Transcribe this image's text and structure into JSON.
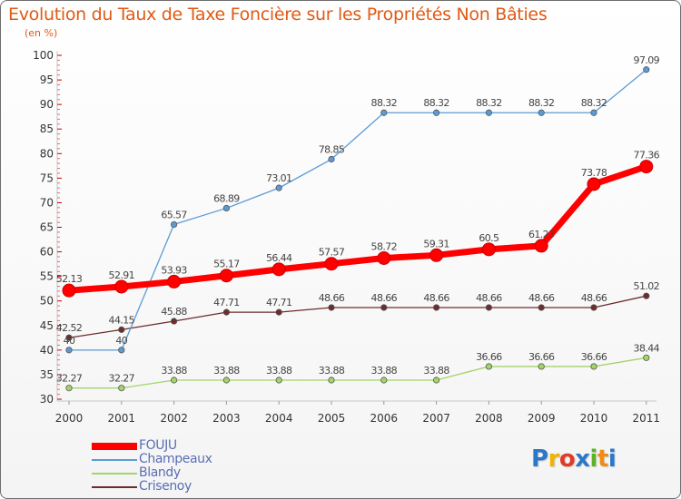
{
  "title": "Evolution du Taux de Taxe Foncière sur les Propriétés Non Bâties",
  "subtitle": "(en %)",
  "chart_data": {
    "type": "line",
    "title": "Evolution du Taux de Taxe Foncière sur les Propriétés Non Bâties",
    "ylabel": "(en %)",
    "xlabel": "",
    "x": [
      "2000",
      "2001",
      "2002",
      "2003",
      "2004",
      "2005",
      "2006",
      "2007",
      "2008",
      "2009",
      "2010",
      "2011"
    ],
    "ylim": [
      30,
      100
    ],
    "yticks": [
      30,
      35,
      40,
      45,
      50,
      55,
      60,
      65,
      70,
      75,
      80,
      85,
      90,
      95,
      100
    ],
    "grid": false,
    "legend_position": "bottom-left",
    "series": [
      {
        "name": "FOUJU",
        "color": "#ff0000",
        "values": [
          52.13,
          52.91,
          53.93,
          55.17,
          56.44,
          57.57,
          58.72,
          59.31,
          60.5,
          61.23,
          73.78,
          77.36
        ],
        "labels": [
          "52.13",
          "52.91",
          "53.93",
          "55.17",
          "56.44",
          "57.57",
          "58.72",
          "59.31",
          "60.5",
          "61.23",
          "73.78",
          "77.36"
        ]
      },
      {
        "name": "Champeaux",
        "color": "#5b9bd5",
        "values": [
          40,
          40,
          65.57,
          68.89,
          73.01,
          78.85,
          88.32,
          88.32,
          88.32,
          88.32,
          88.32,
          97.09
        ],
        "labels": [
          "40",
          "40",
          "65.57",
          "68.89",
          "73.01",
          "78.85",
          "88.32",
          "88.32",
          "88.32",
          "88.32",
          "88.32",
          "97.09"
        ]
      },
      {
        "name": "Blandy",
        "color": "#a3d468",
        "values": [
          32.27,
          32.27,
          33.88,
          33.88,
          33.88,
          33.88,
          33.88,
          33.88,
          36.66,
          36.66,
          36.66,
          38.44
        ],
        "labels": [
          "32.27",
          "32.27",
          "33.88",
          "33.88",
          "33.88",
          "33.88",
          "33.88",
          "33.88",
          "36.66",
          "36.66",
          "36.66",
          "38.44"
        ]
      },
      {
        "name": "Crisenoy",
        "color": "#6e2c2c",
        "values": [
          42.52,
          44.15,
          45.88,
          47.71,
          47.71,
          48.66,
          48.66,
          48.66,
          48.66,
          48.66,
          48.66,
          51.02
        ],
        "labels": [
          "42.52",
          "44.15",
          "45.88",
          "47.71",
          "47.71",
          "48.66",
          "48.66",
          "48.66",
          "48.66",
          "48.66",
          "48.66",
          "51.02"
        ]
      }
    ]
  },
  "legend": [
    {
      "label": "FOUJU",
      "color": "#ff0000"
    },
    {
      "label": "Champeaux",
      "color": "#5b9bd5"
    },
    {
      "label": "Blandy",
      "color": "#a3d468"
    },
    {
      "label": "Crisenoy",
      "color": "#6e2c2c"
    }
  ],
  "logo": {
    "text": "Proxiti",
    "letters": [
      {
        "ch": "P",
        "color": "#2a78c8"
      },
      {
        "ch": "r",
        "color": "#f0b400"
      },
      {
        "ch": "o",
        "color": "#e03c28"
      },
      {
        "ch": "x",
        "color": "#2a78c8"
      },
      {
        "ch": "i",
        "color": "#5ab428"
      },
      {
        "ch": "t",
        "color": "#f08c14"
      },
      {
        "ch": "i",
        "color": "#2a78c8"
      }
    ]
  }
}
